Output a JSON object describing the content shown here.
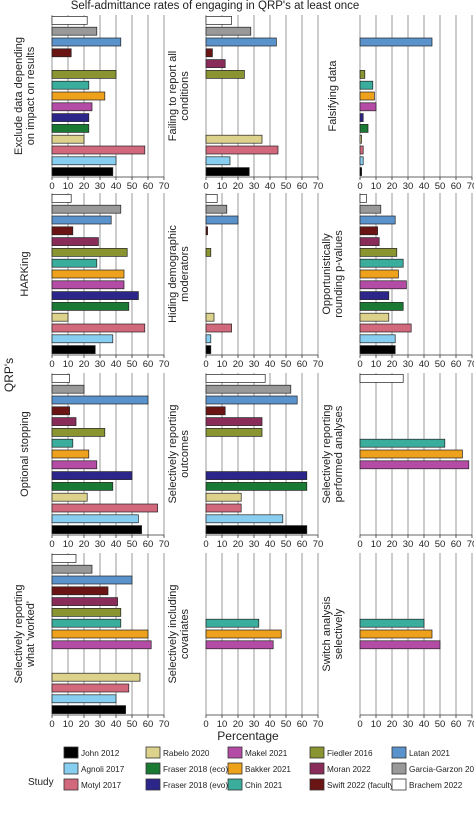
{
  "chart_data": {
    "type": "bar",
    "orientation": "horizontal",
    "title": "Self-admittance rates of engaging in QRP's at least once",
    "xlabel": "Percentage",
    "ylabel": "QRP's",
    "xlim": [
      0,
      70
    ],
    "xticks": [
      0,
      10,
      20,
      30,
      40,
      50,
      60,
      70
    ],
    "grid": true,
    "legend_title": "Study",
    "legend_position": "bottom",
    "studies": [
      {
        "name": "John 2012",
        "color": "#000000"
      },
      {
        "name": "Agnoli 2017",
        "color": "#87cef0"
      },
      {
        "name": "Motyl 2017",
        "color": "#d2687c"
      },
      {
        "name": "Rabelo 2020",
        "color": "#dcd28c"
      },
      {
        "name": "Fraser 2018 (eco)",
        "color": "#1a7a34"
      },
      {
        "name": "Fraser 2018 (evo)",
        "color": "#2c268a"
      },
      {
        "name": "Makel 2021",
        "color": "#b44ca6"
      },
      {
        "name": "Bakker 2021",
        "color": "#eea21c"
      },
      {
        "name": "Chin 2021",
        "color": "#3aad9c"
      },
      {
        "name": "Fiedler 2016",
        "color": "#8a9430"
      },
      {
        "name": "Moran 2022",
        "color": "#8a2c5a"
      },
      {
        "name": "Swift 2022 (faculty)",
        "color": "#6a1414"
      },
      {
        "name": "Latan 2021",
        "color": "#5a92cc"
      },
      {
        "name": "Garcia-Garzon 2022",
        "color": "#999999"
      },
      {
        "name": "Brachem 2022",
        "color": "#ffffff"
      }
    ],
    "panels": [
      {
        "label": "Exclude data depending on impact on results",
        "values": [
          38,
          40,
          58,
          20,
          23,
          23,
          25,
          33,
          23,
          40,
          null,
          12,
          43,
          28,
          22
        ]
      },
      {
        "label": "Failing to report all conditions",
        "values": [
          27,
          15,
          45,
          35,
          null,
          null,
          null,
          null,
          null,
          24,
          12,
          4,
          44,
          28,
          16
        ]
      },
      {
        "label": "Falsifying data",
        "values": [
          1,
          2,
          2,
          1,
          5,
          2,
          10,
          9,
          8,
          3,
          null,
          null,
          45,
          null,
          null
        ]
      },
      {
        "label": "HARKing",
        "values": [
          27,
          38,
          58,
          10,
          48,
          54,
          45,
          45,
          28,
          47,
          29,
          13,
          37,
          43,
          12
        ]
      },
      {
        "label": "Hiding demographic moderators",
        "values": [
          3,
          3,
          16,
          5,
          null,
          null,
          null,
          null,
          null,
          3,
          null,
          1,
          20,
          13,
          7
        ]
      },
      {
        "label": "Opportunistically rounding p-values",
        "values": [
          22,
          22,
          32,
          18,
          27,
          18,
          29,
          24,
          27,
          23,
          12,
          11,
          22,
          13,
          4
        ]
      },
      {
        "label": "Optional stopping",
        "values": [
          56,
          54,
          66,
          22,
          38,
          50,
          28,
          23,
          13,
          33,
          15,
          11,
          60,
          20,
          11
        ]
      },
      {
        "label": "Selectively reporting outcomes",
        "values": [
          63,
          48,
          22,
          22,
          63,
          63,
          null,
          null,
          null,
          35,
          35,
          12,
          57,
          53,
          37
        ]
      },
      {
        "label": "Selectively reporting performed analyses",
        "values": [
          null,
          null,
          null,
          null,
          null,
          null,
          68,
          64,
          53,
          null,
          null,
          null,
          null,
          null,
          27
        ]
      },
      {
        "label": "Selectively reporting what 'worked'",
        "values": [
          46,
          40,
          48,
          55,
          null,
          null,
          62,
          60,
          43,
          43,
          41,
          35,
          50,
          25,
          15
        ]
      },
      {
        "label": "Selectively including covariates",
        "values": [
          null,
          null,
          null,
          null,
          null,
          null,
          42,
          47,
          33,
          null,
          null,
          null,
          null,
          null,
          null
        ]
      },
      {
        "label": "Switch analysis selectively",
        "values": [
          null,
          null,
          null,
          null,
          null,
          null,
          50,
          45,
          40,
          null,
          null,
          null,
          null,
          null,
          null
        ]
      }
    ]
  }
}
